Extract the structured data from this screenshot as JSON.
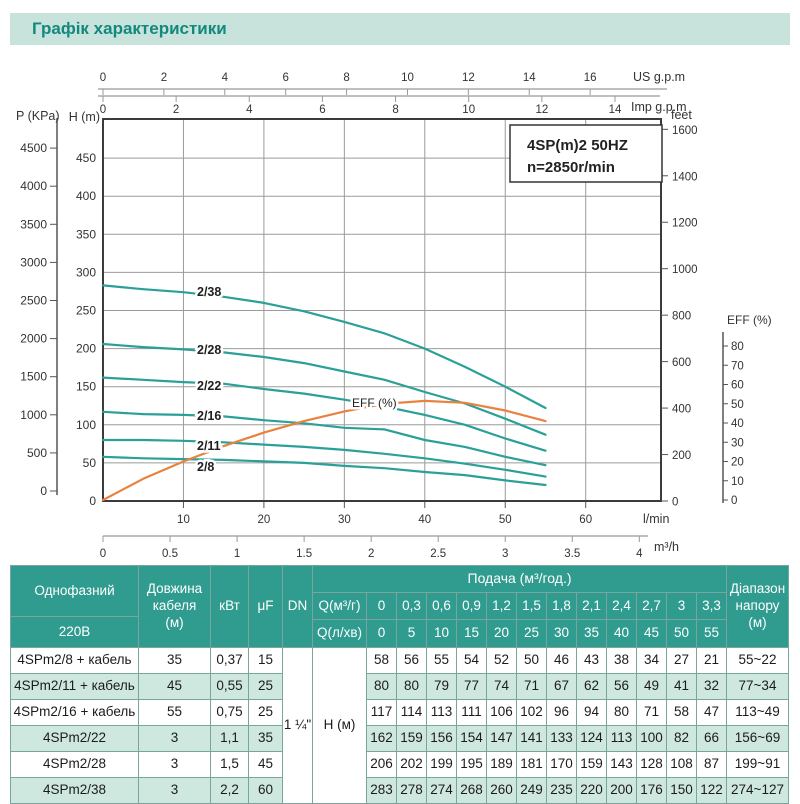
{
  "header": {
    "title": "Графік характеристики"
  },
  "colors": {
    "accent_teal": "#13897d",
    "title_band_bg": "#c8e2dc",
    "table_header_bg": "#2f9c8f",
    "table_row_alt_bg": "#cfe8df",
    "curve_teal": "#2aa098",
    "eff_orange": "#e8823e",
    "grid_gray": "#9b9b9b",
    "axis_dark": "#3b3b3b"
  },
  "chart_data": {
    "type": "line",
    "title": "4SP(m)2 50HZ n=2850r/min",
    "info_box": {
      "line1": "4SP(m)2  50HZ",
      "line2": "n=2850r/min"
    },
    "grid": true,
    "xlim_lmin": [
      0,
      69
    ],
    "ylim_m": [
      0,
      500
    ],
    "x_axis": {
      "us_gpm": {
        "label": "US g.p.m",
        "ticks": [
          0,
          2,
          4,
          6,
          8,
          10,
          12,
          14,
          16
        ]
      },
      "imp_gpm": {
        "label": "Imp g.p.m",
        "ticks": [
          0,
          2,
          4,
          6,
          8,
          10,
          12,
          14
        ]
      },
      "lmin": {
        "label": "l/min",
        "ticks": [
          10,
          20,
          30,
          40,
          50,
          60
        ]
      },
      "m3h": {
        "label": "m³/h",
        "ticks": [
          0,
          0.5,
          1,
          1.5,
          2,
          2.5,
          3,
          3.5,
          4
        ]
      }
    },
    "y_axis": {
      "h_m": {
        "label": "H (m)",
        "ticks": [
          0,
          50,
          100,
          150,
          200,
          250,
          300,
          350,
          400,
          450
        ]
      },
      "p_kpa": {
        "label": "P (KPa)",
        "ticks": [
          0,
          500,
          1000,
          1500,
          2000,
          2500,
          3000,
          3500,
          4000,
          4500
        ]
      },
      "feet": {
        "label": "feet",
        "ticks": [
          0,
          200,
          400,
          600,
          800,
          1000,
          1200,
          1400,
          1600
        ]
      },
      "eff": {
        "label": "EFF (%)",
        "ticks": [
          0,
          10,
          20,
          30,
          40,
          50,
          60,
          70,
          80
        ]
      }
    },
    "q_lmin": [
      0,
      5,
      10,
      15,
      20,
      25,
      30,
      35,
      40,
      45,
      50,
      55
    ],
    "q_m3h": [
      0,
      0.3,
      0.6,
      0.9,
      1.2,
      1.5,
      1.8,
      2.1,
      2.4,
      2.7,
      3,
      3.3
    ],
    "series": [
      {
        "name": "2/8",
        "values": [
          58,
          56,
          55,
          54,
          52,
          50,
          46,
          43,
          38,
          34,
          27,
          21
        ]
      },
      {
        "name": "2/11",
        "values": [
          80,
          80,
          79,
          77,
          74,
          71,
          67,
          62,
          56,
          49,
          41,
          32
        ]
      },
      {
        "name": "2/16",
        "values": [
          117,
          114,
          113,
          111,
          106,
          102,
          96,
          94,
          80,
          71,
          58,
          47
        ]
      },
      {
        "name": "2/22",
        "values": [
          162,
          159,
          156,
          154,
          147,
          141,
          133,
          124,
          113,
          100,
          82,
          66
        ]
      },
      {
        "name": "2/28",
        "values": [
          206,
          202,
          199,
          195,
          189,
          181,
          170,
          159,
          143,
          128,
          108,
          87
        ]
      },
      {
        "name": "2/38",
        "values": [
          283,
          278,
          274,
          268,
          260,
          249,
          235,
          220,
          200,
          176,
          150,
          122
        ]
      }
    ],
    "eff_curve": {
      "name": "EFF (%)",
      "values": [
        0,
        11,
        20,
        28,
        35,
        41,
        46,
        50,
        51.5,
        50.5,
        46.5,
        41
      ]
    }
  },
  "table": {
    "header": {
      "phase": "Однофазний",
      "voltage": "220В",
      "cable": [
        "Довжина",
        "кабеля",
        "(м)"
      ],
      "kw": "кВт",
      "uf": "μF",
      "dn": "DN",
      "flow": "Подача (м³/год.)",
      "q_m3h_label": "Q(м³/г)",
      "q_lmin_label": "Q(л/хв)",
      "q_m3h": [
        "0",
        "0,3",
        "0,6",
        "0,9",
        "1,2",
        "1,5",
        "1,8",
        "2,1",
        "2,4",
        "2,7",
        "3",
        "3,3"
      ],
      "q_lmin": [
        "0",
        "5",
        "10",
        "15",
        "20",
        "25",
        "30",
        "35",
        "40",
        "45",
        "50",
        "55"
      ],
      "range": [
        "Діапазон",
        "напору",
        "(м)"
      ]
    },
    "merged": {
      "dn_value": "1 ¼\"",
      "h_label": "Н (м)"
    },
    "rows": [
      {
        "model": "4SPm2/8 + кабель",
        "cable": "35",
        "kw": "0,37",
        "uf": "15",
        "range": "55~22"
      },
      {
        "model": "4SPm2/11 + кабель",
        "cable": "45",
        "kw": "0,55",
        "uf": "25",
        "range": "77~34"
      },
      {
        "model": "4SPm2/16 + кабель",
        "cable": "55",
        "kw": "0,75",
        "uf": "25",
        "range": "113~49"
      },
      {
        "model": "4SPm2/22",
        "cable": "3",
        "kw": "1,1",
        "uf": "35",
        "range": "156~69"
      },
      {
        "model": "4SPm2/28",
        "cable": "3",
        "kw": "1,5",
        "uf": "45",
        "range": "199~91"
      },
      {
        "model": "4SPm2/38",
        "cable": "3",
        "kw": "2,2",
        "uf": "60",
        "range": "274~127"
      }
    ]
  }
}
